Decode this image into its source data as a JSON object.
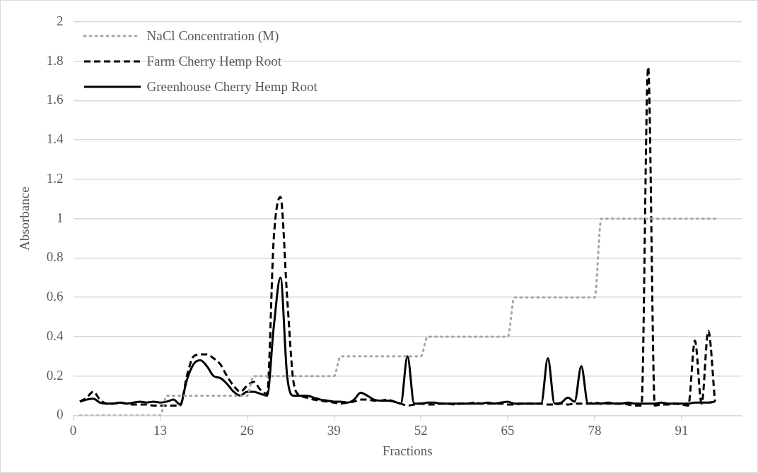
{
  "chart_data": {
    "type": "line",
    "xlabel": "Fractions",
    "ylabel": "Absorbance",
    "x": [
      1,
      2,
      3,
      4,
      5,
      6,
      7,
      8,
      9,
      10,
      11,
      12,
      13,
      14,
      15,
      16,
      17,
      18,
      19,
      20,
      21,
      22,
      23,
      24,
      25,
      26,
      27,
      28,
      29,
      30,
      31,
      32,
      33,
      34,
      35,
      36,
      37,
      38,
      39,
      40,
      41,
      42,
      43,
      44,
      45,
      46,
      47,
      48,
      49,
      50,
      51,
      52,
      53,
      54,
      55,
      56,
      57,
      58,
      59,
      60,
      61,
      62,
      63,
      64,
      65,
      66,
      67,
      68,
      69,
      70,
      71,
      72,
      73,
      74,
      75,
      76,
      77,
      78,
      79,
      80,
      81,
      82,
      83,
      84,
      85,
      86,
      87,
      88,
      89,
      90,
      91,
      92,
      93,
      94,
      95,
      96
    ],
    "series": [
      {
        "name": "NaCl Concentration (M)",
        "color": "#a6a6a6",
        "line_style": "dotted",
        "values": [
          0,
          0,
          0,
          0,
          0,
          0,
          0,
          0,
          0,
          0,
          0,
          0,
          0,
          0.1,
          0.1,
          0.1,
          0.1,
          0.1,
          0.1,
          0.1,
          0.1,
          0.1,
          0.1,
          0.1,
          0.1,
          0.1,
          0.2,
          0.2,
          0.2,
          0.2,
          0.2,
          0.2,
          0.2,
          0.2,
          0.2,
          0.2,
          0.2,
          0.2,
          0.2,
          0.3,
          0.3,
          0.3,
          0.3,
          0.3,
          0.3,
          0.3,
          0.3,
          0.3,
          0.3,
          0.3,
          0.3,
          0.3,
          0.4,
          0.4,
          0.4,
          0.4,
          0.4,
          0.4,
          0.4,
          0.4,
          0.4,
          0.4,
          0.4,
          0.4,
          0.4,
          0.6,
          0.6,
          0.6,
          0.6,
          0.6,
          0.6,
          0.6,
          0.6,
          0.6,
          0.6,
          0.6,
          0.6,
          0.6,
          1,
          1,
          1,
          1,
          1,
          1,
          1,
          1,
          1,
          1,
          1,
          1,
          1,
          1,
          1,
          1,
          1,
          1
        ]
      },
      {
        "name": "Farm Cherry Hemp Root",
        "color": "#000000",
        "line_style": "dashed",
        "values": [
          0.07,
          0.09,
          0.12,
          0.08,
          0.06,
          0.06,
          0.065,
          0.06,
          0.055,
          0.055,
          0.055,
          0.05,
          0.05,
          0.05,
          0.05,
          0.05,
          0.2,
          0.3,
          0.31,
          0.31,
          0.29,
          0.26,
          0.2,
          0.15,
          0.12,
          0.15,
          0.17,
          0.13,
          0.11,
          0.9,
          1.11,
          0.6,
          0.16,
          0.1,
          0.09,
          0.08,
          0.075,
          0.07,
          0.065,
          0.06,
          0.065,
          0.07,
          0.08,
          0.08,
          0.075,
          0.075,
          0.08,
          0.07,
          0.06,
          0.05,
          0.055,
          0.06,
          0.055,
          0.055,
          0.06,
          0.06,
          0.055,
          0.06,
          0.06,
          0.065,
          0.06,
          0.06,
          0.06,
          0.06,
          0.055,
          0.055,
          0.06,
          0.06,
          0.06,
          0.06,
          0.055,
          0.055,
          0.06,
          0.055,
          0.06,
          0.06,
          0.06,
          0.065,
          0.06,
          0.06,
          0.06,
          0.06,
          0.055,
          0.05,
          0.05,
          1.77,
          0.05,
          0.055,
          0.055,
          0.06,
          0.055,
          0.05,
          0.38,
          0.06,
          0.43,
          0.07
        ]
      },
      {
        "name": "Greenhouse Cherry Hemp Root",
        "color": "#000000",
        "line_style": "solid",
        "values": [
          0.07,
          0.08,
          0.085,
          0.065,
          0.06,
          0.06,
          0.065,
          0.06,
          0.065,
          0.07,
          0.065,
          0.07,
          0.065,
          0.07,
          0.08,
          0.055,
          0.18,
          0.26,
          0.28,
          0.25,
          0.2,
          0.19,
          0.16,
          0.12,
          0.1,
          0.12,
          0.12,
          0.11,
          0.1,
          0.45,
          0.7,
          0.2,
          0.1,
          0.1,
          0.1,
          0.09,
          0.08,
          0.075,
          0.07,
          0.07,
          0.065,
          0.08,
          0.115,
          0.1,
          0.08,
          0.075,
          0.075,
          0.07,
          0.06,
          0.3,
          0.06,
          0.06,
          0.065,
          0.065,
          0.06,
          0.06,
          0.06,
          0.06,
          0.06,
          0.06,
          0.06,
          0.065,
          0.06,
          0.065,
          0.07,
          0.06,
          0.06,
          0.06,
          0.06,
          0.06,
          0.29,
          0.06,
          0.065,
          0.09,
          0.07,
          0.25,
          0.06,
          0.06,
          0.06,
          0.065,
          0.06,
          0.06,
          0.065,
          0.06,
          0.06,
          0.06,
          0.06,
          0.065,
          0.06,
          0.06,
          0.06,
          0.06,
          0.065,
          0.065,
          0.065,
          0.07
        ]
      }
    ],
    "xlim": [
      0,
      100
    ],
    "xticks": [
      0,
      13,
      26,
      39,
      52,
      65,
      78,
      91
    ],
    "ylim": [
      0,
      2
    ],
    "yticks": [
      0,
      0.2,
      0.4,
      0.6,
      0.8,
      1,
      1.2,
      1.4,
      1.6,
      1.8,
      2
    ],
    "grid": "y",
    "legend": "top left",
    "marker": "none"
  }
}
